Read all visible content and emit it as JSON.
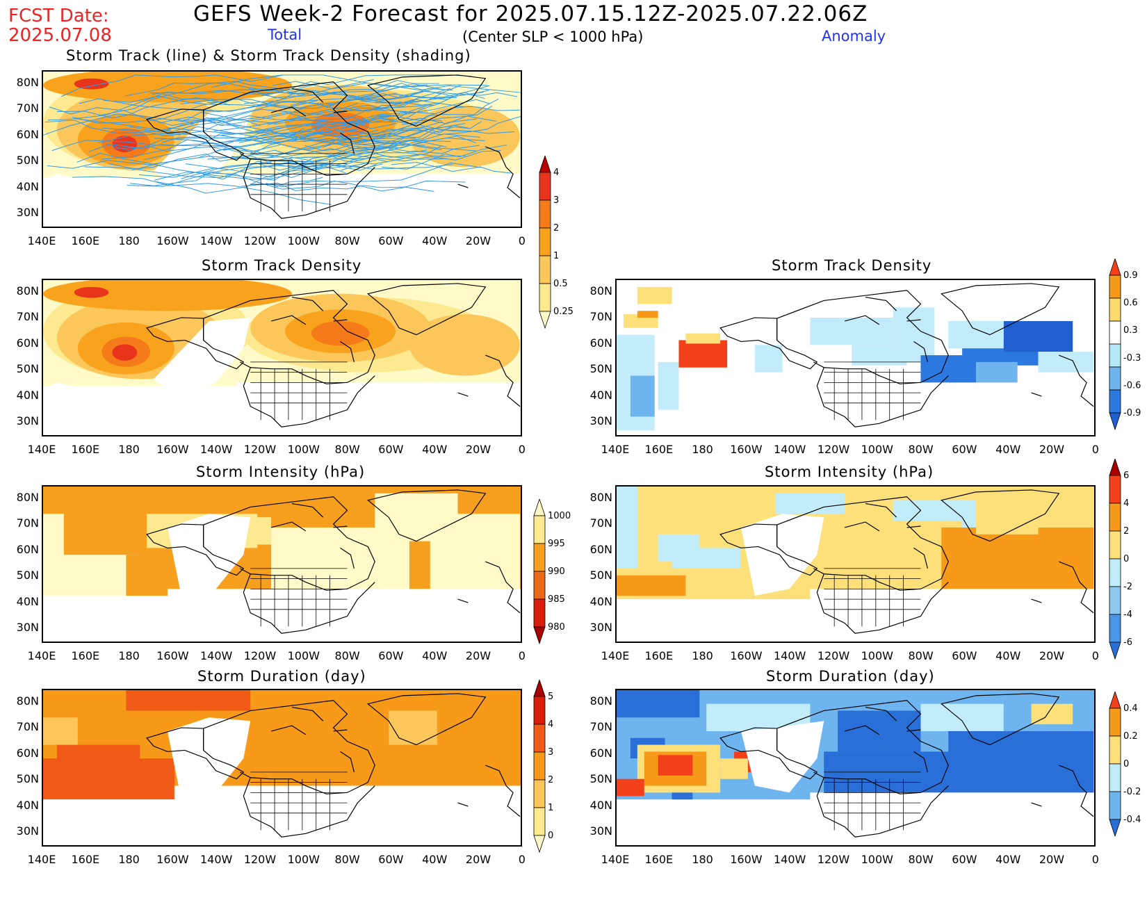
{
  "header": {
    "fcst_label": "FCST Date:",
    "fcst_date": "2025.07.08",
    "title": "GEFS Week-2 Forecast for 2025.07.15.12Z-2025.07.22.06Z",
    "total_label": "Total",
    "subtitle": "(Center SLP < 1000 hPa)",
    "anomaly_label": "Anomaly"
  },
  "axes": {
    "lat_labels": [
      "80N",
      "70N",
      "60N",
      "50N",
      "40N",
      "30N"
    ],
    "lon_labels": [
      "140E",
      "160E",
      "180",
      "160W",
      "140W",
      "120W",
      "100W",
      "80W",
      "60W",
      "40W",
      "20W",
      "0"
    ]
  },
  "panels": [
    {
      "id": "track-total",
      "title": "Storm Track (line) & Storm Track Density (shading)",
      "kind": "density-tracks"
    },
    {
      "id": "density-total",
      "title": "Storm Track Density",
      "kind": "density"
    },
    {
      "id": "density-anom",
      "title": "Storm Track Density",
      "kind": "density-anom"
    },
    {
      "id": "intensity-total",
      "title": "Storm Intensity (hPa)",
      "kind": "intensity"
    },
    {
      "id": "intensity-anom",
      "title": "Storm Intensity (hPa)",
      "kind": "intensity-anom"
    },
    {
      "id": "duration-total",
      "title": "Storm Duration (day)",
      "kind": "duration"
    },
    {
      "id": "duration-anom",
      "title": "Storm Duration (day)",
      "kind": "duration-anom"
    }
  ],
  "colorbars": {
    "density": {
      "labels": [
        "4",
        "3",
        "2",
        "1",
        "0.5",
        "0.25"
      ],
      "colors": [
        "#b80000",
        "#e8341c",
        "#f47a1a",
        "#f9a21d",
        "#fbc65a",
        "#fde98f",
        "#fffac8"
      ]
    },
    "density_anom": {
      "labels": [
        "0.9",
        "0.6",
        "0.3",
        "-0.3",
        "-0.6",
        "-0.9"
      ],
      "colors": [
        "#f2401a",
        "#f79a1a",
        "#fcdb6e",
        "#ffffff",
        "#b6e8f8",
        "#6eb4ee",
        "#2a78e0",
        "#1f5fd0"
      ]
    },
    "intensity": {
      "labels": [
        "1000",
        "995",
        "990",
        "985",
        "980"
      ],
      "colors": [
        "#fffac8",
        "#fde98f",
        "#f7a020",
        "#ea6a18",
        "#d81e0a",
        "#a80000"
      ]
    },
    "intensity_anom": {
      "labels": [
        "6",
        "4",
        "2",
        "0",
        "-2",
        "-4",
        "-6"
      ],
      "colors": [
        "#a80000",
        "#f2401a",
        "#f79a1a",
        "#fde07a",
        "#c2ecfa",
        "#8ec8f0",
        "#4a96e6",
        "#2a6fd8"
      ]
    },
    "duration": {
      "labels": [
        "5",
        "4",
        "3",
        "2",
        "1",
        "0"
      ],
      "colors": [
        "#a80000",
        "#d81e0a",
        "#f05a16",
        "#f79a1a",
        "#fbc65a",
        "#fde98f",
        "#fffac8"
      ]
    },
    "duration_anom": {
      "labels": [
        "0.4",
        "0.2",
        "0",
        "-0.2",
        "-0.4"
      ],
      "colors": [
        "#f2401a",
        "#f79a1a",
        "#fde07a",
        "#c2ecfa",
        "#6eb4ee",
        "#2a6fd8"
      ]
    }
  }
}
